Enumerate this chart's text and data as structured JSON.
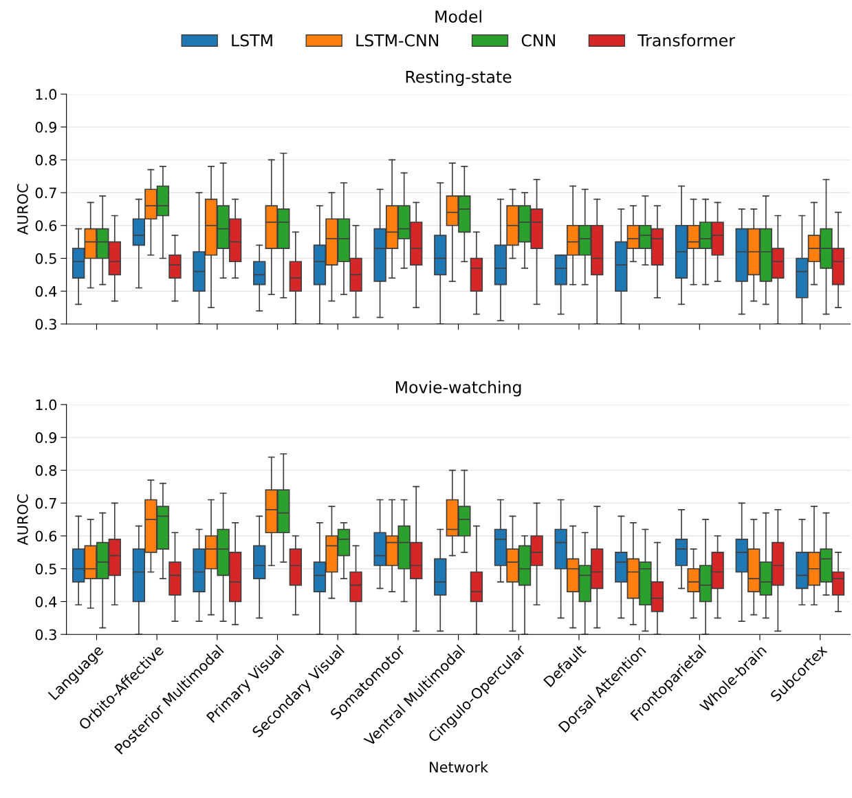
{
  "chart_data": [
    {
      "type": "box",
      "title": "Resting-state",
      "ylabel": "AUROC",
      "legend_title": "Model",
      "legend": "top",
      "grid": "y",
      "tick_labels": "y",
      "categories": [
        null,
        null,
        null,
        null,
        null,
        null,
        null,
        null,
        null,
        null,
        null,
        null,
        null
      ],
      "ylim": [
        0.3,
        1.0
      ],
      "yticks": [
        0.3,
        0.4,
        0.5,
        0.6,
        0.7,
        0.8,
        0.9,
        {
          "value": 1.0,
          "label": "1.0"
        }
      ],
      "series": [
        {
          "name": "LSTM",
          "color": "#1f77b4",
          "boxes": [
            {
              "low": 0.36,
              "q1": 0.44,
              "median": 0.49,
              "q3": 0.53,
              "high": 0.59
            },
            {
              "low": 0.41,
              "q1": 0.54,
              "median": 0.57,
              "q3": 0.62,
              "high": 0.68
            },
            {
              "low": 0.3,
              "q1": 0.4,
              "median": 0.46,
              "q3": 0.52,
              "high": 0.7
            },
            {
              "low": 0.34,
              "q1": 0.42,
              "median": 0.45,
              "q3": 0.49,
              "high": 0.54
            },
            {
              "low": 0.3,
              "q1": 0.42,
              "median": 0.49,
              "q3": 0.54,
              "high": 0.66
            },
            {
              "low": 0.32,
              "q1": 0.43,
              "median": 0.53,
              "q3": 0.59,
              "high": 0.71
            },
            {
              "low": 0.3,
              "q1": 0.45,
              "median": 0.5,
              "q3": 0.57,
              "high": 0.73
            },
            {
              "low": 0.31,
              "q1": 0.42,
              "median": 0.47,
              "q3": 0.54,
              "high": 0.68
            },
            {
              "low": 0.33,
              "q1": 0.42,
              "median": 0.47,
              "q3": 0.51,
              "high": 0.51
            },
            {
              "low": 0.3,
              "q1": 0.4,
              "median": 0.48,
              "q3": 0.55,
              "high": 0.65
            },
            {
              "low": 0.36,
              "q1": 0.44,
              "median": 0.52,
              "q3": 0.6,
              "high": 0.72
            },
            {
              "low": 0.33,
              "q1": 0.43,
              "median": 0.52,
              "q3": 0.59,
              "high": 0.65
            },
            {
              "low": 0.3,
              "q1": 0.38,
              "median": 0.46,
              "q3": 0.5,
              "high": 0.63
            }
          ]
        },
        {
          "name": "LSTM-CNN",
          "color": "#ff7f0e",
          "boxes": [
            {
              "low": 0.41,
              "q1": 0.5,
              "median": 0.55,
              "q3": 0.59,
              "high": 0.67
            },
            {
              "low": 0.51,
              "q1": 0.62,
              "median": 0.66,
              "q3": 0.71,
              "high": 0.77
            },
            {
              "low": 0.35,
              "q1": 0.51,
              "median": 0.6,
              "q3": 0.68,
              "high": 0.78
            },
            {
              "low": 0.39,
              "q1": 0.53,
              "median": 0.61,
              "q3": 0.66,
              "high": 0.8
            },
            {
              "low": 0.37,
              "q1": 0.48,
              "median": 0.56,
              "q3": 0.62,
              "high": 0.7
            },
            {
              "low": 0.44,
              "q1": 0.53,
              "median": 0.58,
              "q3": 0.66,
              "high": 0.8
            },
            {
              "low": 0.43,
              "q1": 0.6,
              "median": 0.64,
              "q3": 0.69,
              "high": 0.79
            },
            {
              "low": 0.5,
              "q1": 0.54,
              "median": 0.6,
              "q3": 0.66,
              "high": 0.71
            },
            {
              "low": 0.42,
              "q1": 0.51,
              "median": 0.55,
              "q3": 0.6,
              "high": 0.72
            },
            {
              "low": 0.49,
              "q1": 0.53,
              "median": 0.56,
              "q3": 0.6,
              "high": 0.66
            },
            {
              "low": 0.42,
              "q1": 0.53,
              "median": 0.55,
              "q3": 0.6,
              "high": 0.68
            },
            {
              "low": 0.37,
              "q1": 0.45,
              "median": 0.52,
              "q3": 0.59,
              "high": 0.65
            },
            {
              "low": 0.42,
              "q1": 0.49,
              "median": 0.53,
              "q3": 0.57,
              "high": 0.67
            }
          ]
        },
        {
          "name": "CNN",
          "color": "#2ca02c",
          "boxes": [
            {
              "low": 0.42,
              "q1": 0.5,
              "median": 0.55,
              "q3": 0.59,
              "high": 0.69
            },
            {
              "low": 0.5,
              "q1": 0.63,
              "median": 0.66,
              "q3": 0.72,
              "high": 0.78
            },
            {
              "low": 0.44,
              "q1": 0.53,
              "median": 0.59,
              "q3": 0.66,
              "high": 0.79
            },
            {
              "low": 0.38,
              "q1": 0.53,
              "median": 0.61,
              "q3": 0.65,
              "high": 0.82
            },
            {
              "low": 0.39,
              "q1": 0.49,
              "median": 0.56,
              "q3": 0.62,
              "high": 0.73
            },
            {
              "low": 0.47,
              "q1": 0.56,
              "median": 0.59,
              "q3": 0.66,
              "high": 0.76
            },
            {
              "low": 0.49,
              "q1": 0.58,
              "median": 0.65,
              "q3": 0.69,
              "high": 0.78
            },
            {
              "low": 0.47,
              "q1": 0.55,
              "median": 0.61,
              "q3": 0.66,
              "high": 0.7
            },
            {
              "low": 0.42,
              "q1": 0.51,
              "median": 0.56,
              "q3": 0.6,
              "high": 0.71
            },
            {
              "low": 0.48,
              "q1": 0.53,
              "median": 0.57,
              "q3": 0.6,
              "high": 0.69
            },
            {
              "low": 0.42,
              "q1": 0.53,
              "median": 0.56,
              "q3": 0.61,
              "high": 0.68
            },
            {
              "low": 0.36,
              "q1": 0.43,
              "median": 0.52,
              "q3": 0.59,
              "high": 0.69
            },
            {
              "low": 0.33,
              "q1": 0.47,
              "median": 0.53,
              "q3": 0.59,
              "high": 0.74
            }
          ]
        },
        {
          "name": "Transformer",
          "color": "#d62728",
          "boxes": [
            {
              "low": 0.37,
              "q1": 0.45,
              "median": 0.49,
              "q3": 0.55,
              "high": 0.63
            },
            {
              "low": 0.37,
              "q1": 0.44,
              "median": 0.48,
              "q3": 0.51,
              "high": 0.57
            },
            {
              "low": 0.44,
              "q1": 0.49,
              "median": 0.55,
              "q3": 0.62,
              "high": 0.68
            },
            {
              "low": 0.3,
              "q1": 0.4,
              "median": 0.44,
              "q3": 0.49,
              "high": 0.58
            },
            {
              "low": 0.32,
              "q1": 0.4,
              "median": 0.45,
              "q3": 0.5,
              "high": 0.6
            },
            {
              "low": 0.35,
              "q1": 0.48,
              "median": 0.53,
              "q3": 0.61,
              "high": 0.67
            },
            {
              "low": 0.33,
              "q1": 0.4,
              "median": 0.47,
              "q3": 0.5,
              "high": 0.58
            },
            {
              "low": 0.36,
              "q1": 0.53,
              "median": 0.61,
              "q3": 0.65,
              "high": 0.74
            },
            {
              "low": 0.3,
              "q1": 0.45,
              "median": 0.5,
              "q3": 0.6,
              "high": 0.68
            },
            {
              "low": 0.38,
              "q1": 0.48,
              "median": 0.56,
              "q3": 0.59,
              "high": 0.66
            },
            {
              "low": 0.43,
              "q1": 0.51,
              "median": 0.57,
              "q3": 0.61,
              "high": 0.67
            },
            {
              "low": 0.3,
              "q1": 0.44,
              "median": 0.49,
              "q3": 0.53,
              "high": 0.63
            },
            {
              "low": 0.35,
              "q1": 0.42,
              "median": 0.49,
              "q3": 0.53,
              "high": 0.64
            }
          ]
        }
      ]
    },
    {
      "type": "box",
      "title": "Movie-watching",
      "ylabel": "AUROC",
      "xlabel": "Network",
      "grid": "y",
      "categories": [
        "Language",
        "Orbito-Affective",
        "Posterior Multimodal",
        "Primary Visual",
        "Secondary Visual",
        "Somatomotor",
        "Ventral Multimodal",
        "Cingulo-Opercular",
        "Default",
        "Dorsal Attention",
        "Frontoparietal",
        "Whole-brain",
        "Subcortex"
      ],
      "ylim": [
        0.3,
        1.0
      ],
      "yticks": [
        0.3,
        0.4,
        0.5,
        0.6,
        0.7,
        0.8,
        0.9,
        {
          "value": 1.0,
          "label": "1.0"
        }
      ],
      "series": [
        {
          "color": "#1f77b4",
          "boxes": [
            {
              "low": 0.39,
              "q1": 0.46,
              "median": 0.5,
              "q3": 0.56,
              "high": 0.66
            },
            {
              "low": 0.3,
              "q1": 0.4,
              "median": 0.49,
              "q3": 0.56,
              "high": 0.63
            },
            {
              "low": 0.34,
              "q1": 0.43,
              "median": 0.49,
              "q3": 0.56,
              "high": 0.62
            },
            {
              "low": 0.35,
              "q1": 0.47,
              "median": 0.51,
              "q3": 0.57,
              "high": 0.66
            },
            {
              "low": 0.3,
              "q1": 0.43,
              "median": 0.48,
              "q3": 0.52,
              "high": 0.64
            },
            {
              "low": 0.44,
              "q1": 0.51,
              "median": 0.54,
              "q3": 0.61,
              "high": 0.71
            },
            {
              "low": 0.31,
              "q1": 0.42,
              "median": 0.46,
              "q3": 0.53,
              "high": 0.62
            },
            {
              "low": 0.46,
              "q1": 0.51,
              "median": 0.59,
              "q3": 0.62,
              "high": 0.71
            },
            {
              "low": 0.35,
              "q1": 0.5,
              "median": 0.58,
              "q3": 0.62,
              "high": 0.71
            },
            {
              "low": 0.35,
              "q1": 0.46,
              "median": 0.52,
              "q3": 0.55,
              "high": 0.66
            },
            {
              "low": 0.44,
              "q1": 0.51,
              "median": 0.56,
              "q3": 0.59,
              "high": 0.68
            },
            {
              "low": 0.34,
              "q1": 0.49,
              "median": 0.55,
              "q3": 0.59,
              "high": 0.7
            },
            {
              "low": 0.39,
              "q1": 0.44,
              "median": 0.48,
              "q3": 0.55,
              "high": 0.65
            }
          ]
        },
        {
          "color": "#ff7f0e",
          "boxes": [
            {
              "low": 0.38,
              "q1": 0.47,
              "median": 0.5,
              "q3": 0.57,
              "high": 0.65
            },
            {
              "low": 0.49,
              "q1": 0.55,
              "median": 0.65,
              "q3": 0.71,
              "high": 0.77
            },
            {
              "low": 0.36,
              "q1": 0.5,
              "median": 0.56,
              "q3": 0.6,
              "high": 0.71
            },
            {
              "low": 0.51,
              "q1": 0.61,
              "median": 0.68,
              "q3": 0.74,
              "high": 0.84
            },
            {
              "low": 0.41,
              "q1": 0.49,
              "median": 0.57,
              "q3": 0.6,
              "high": 0.69
            },
            {
              "low": 0.43,
              "q1": 0.51,
              "median": 0.58,
              "q3": 0.6,
              "high": 0.71
            },
            {
              "low": 0.54,
              "q1": 0.6,
              "median": 0.62,
              "q3": 0.71,
              "high": 0.8
            },
            {
              "low": 0.31,
              "q1": 0.46,
              "median": 0.52,
              "q3": 0.56,
              "high": 0.66
            },
            {
              "low": 0.32,
              "q1": 0.43,
              "median": 0.5,
              "q3": 0.53,
              "high": 0.63
            },
            {
              "low": 0.33,
              "q1": 0.41,
              "median": 0.49,
              "q3": 0.53,
              "high": 0.64
            },
            {
              "low": 0.35,
              "q1": 0.43,
              "median": 0.46,
              "q3": 0.5,
              "high": 0.56
            },
            {
              "low": 0.36,
              "q1": 0.43,
              "median": 0.47,
              "q3": 0.56,
              "high": 0.65
            },
            {
              "low": 0.39,
              "q1": 0.45,
              "median": 0.5,
              "q3": 0.55,
              "high": 0.69
            }
          ]
        },
        {
          "color": "#2ca02c",
          "boxes": [
            {
              "low": 0.32,
              "q1": 0.47,
              "median": 0.52,
              "q3": 0.58,
              "high": 0.67
            },
            {
              "low": 0.47,
              "q1": 0.56,
              "median": 0.66,
              "q3": 0.69,
              "high": 0.76
            },
            {
              "low": 0.34,
              "q1": 0.48,
              "median": 0.56,
              "q3": 0.62,
              "high": 0.73
            },
            {
              "low": 0.52,
              "q1": 0.61,
              "median": 0.67,
              "q3": 0.74,
              "high": 0.85
            },
            {
              "low": 0.47,
              "q1": 0.54,
              "median": 0.59,
              "q3": 0.62,
              "high": 0.64
            },
            {
              "low": 0.4,
              "q1": 0.5,
              "median": 0.58,
              "q3": 0.63,
              "high": 0.71
            },
            {
              "low": 0.55,
              "q1": 0.6,
              "median": 0.65,
              "q3": 0.69,
              "high": 0.8
            },
            {
              "low": 0.3,
              "q1": 0.45,
              "median": 0.5,
              "q3": 0.57,
              "high": 0.6
            },
            {
              "low": 0.3,
              "q1": 0.4,
              "median": 0.48,
              "q3": 0.51,
              "high": 0.61
            },
            {
              "low": 0.31,
              "q1": 0.39,
              "median": 0.5,
              "q3": 0.52,
              "high": 0.62
            },
            {
              "low": 0.3,
              "q1": 0.4,
              "median": 0.45,
              "q3": 0.51,
              "high": 0.65
            },
            {
              "low": 0.35,
              "q1": 0.42,
              "median": 0.46,
              "q3": 0.52,
              "high": 0.67
            },
            {
              "low": 0.42,
              "q1": 0.46,
              "median": 0.53,
              "q3": 0.56,
              "high": 0.67
            }
          ]
        },
        {
          "color": "#d62728",
          "boxes": [
            {
              "low": 0.39,
              "q1": 0.48,
              "median": 0.54,
              "q3": 0.59,
              "high": 0.7
            },
            {
              "low": 0.34,
              "q1": 0.42,
              "median": 0.48,
              "q3": 0.52,
              "high": 0.61
            },
            {
              "low": 0.33,
              "q1": 0.4,
              "median": 0.46,
              "q3": 0.55,
              "high": 0.64
            },
            {
              "low": 0.36,
              "q1": 0.45,
              "median": 0.51,
              "q3": 0.56,
              "high": 0.6
            },
            {
              "low": 0.3,
              "q1": 0.4,
              "median": 0.45,
              "q3": 0.49,
              "high": 0.57
            },
            {
              "low": 0.31,
              "q1": 0.47,
              "median": 0.51,
              "q3": 0.58,
              "high": 0.75
            },
            {
              "low": 0.3,
              "q1": 0.4,
              "median": 0.43,
              "q3": 0.49,
              "high": 0.63
            },
            {
              "low": 0.39,
              "q1": 0.51,
              "median": 0.55,
              "q3": 0.6,
              "high": 0.7
            },
            {
              "low": 0.32,
              "q1": 0.44,
              "median": 0.49,
              "q3": 0.56,
              "high": 0.69
            },
            {
              "low": 0.3,
              "q1": 0.37,
              "median": 0.41,
              "q3": 0.46,
              "high": 0.58
            },
            {
              "low": 0.35,
              "q1": 0.44,
              "median": 0.49,
              "q3": 0.55,
              "high": 0.6
            },
            {
              "low": 0.31,
              "q1": 0.45,
              "median": 0.51,
              "q3": 0.58,
              "high": 0.68
            },
            {
              "low": 0.37,
              "q1": 0.42,
              "median": 0.47,
              "q3": 0.49,
              "high": 0.55
            }
          ]
        }
      ]
    }
  ]
}
